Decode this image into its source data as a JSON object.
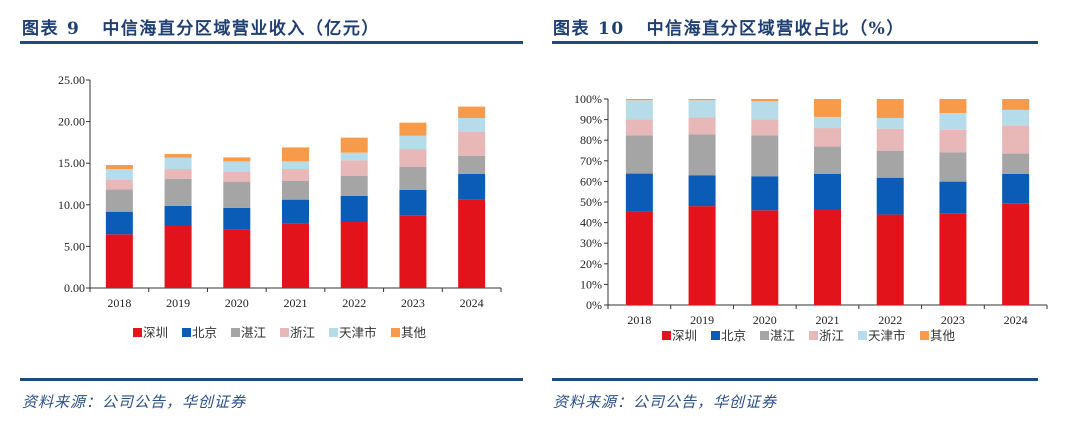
{
  "colors": {
    "title": "#1f3f73",
    "rule": "#1f4a7d",
    "series": [
      "#e3131b",
      "#0b5cb6",
      "#a5a5a5",
      "#e8b7b7",
      "#b5dce8",
      "#f79a4a"
    ]
  },
  "left": {
    "figure_label": "图表",
    "figure_number": "9",
    "title": "中信海直分区域营业收入（亿元）",
    "source": "资料来源：公司公告，华创证券"
  },
  "right": {
    "figure_label": "图表",
    "figure_number": "10",
    "title": "中信海直分区域营收占比（%）",
    "source": "资料来源：公司公告，华创证券"
  },
  "chart_data": [
    {
      "type": "bar",
      "stacked": true,
      "title": "中信海直分区域营业收入（亿元）",
      "xlabel": "",
      "ylabel": "",
      "categories": [
        "2018",
        "2019",
        "2020",
        "2021",
        "2022",
        "2023",
        "2024"
      ],
      "ylim": [
        0,
        25
      ],
      "yticks": [
        "0.00",
        "5.00",
        "10.00",
        "15.00",
        "20.00",
        "25.00"
      ],
      "grid": false,
      "legend": "bottom",
      "series": [
        {
          "name": "深圳",
          "values": [
            6.45,
            7.45,
            7.01,
            7.77,
            7.93,
            8.69,
            10.62
          ]
        },
        {
          "name": "北京",
          "values": [
            2.72,
            2.41,
            2.61,
            2.85,
            3.13,
            3.09,
            3.08
          ]
        },
        {
          "name": "湛江",
          "values": [
            2.69,
            3.28,
            3.16,
            2.24,
            2.4,
            2.8,
            2.2
          ]
        },
        {
          "name": "浙江",
          "values": [
            1.12,
            1.16,
            1.16,
            1.44,
            1.88,
            2.12,
            2.85
          ]
        },
        {
          "name": "天津市",
          "values": [
            1.32,
            1.36,
            1.28,
            0.92,
            0.93,
            1.6,
            1.68
          ]
        },
        {
          "name": "其他",
          "values": [
            0.48,
            0.44,
            0.48,
            1.68,
            1.8,
            1.57,
            1.37
          ]
        }
      ]
    },
    {
      "type": "bar",
      "stacked": true,
      "title": "中信海直分区域营收占比（%）",
      "xlabel": "",
      "ylabel": "",
      "categories": [
        "2018",
        "2019",
        "2020",
        "2021",
        "2022",
        "2023",
        "2024"
      ],
      "ylim": [
        0,
        100
      ],
      "yticks": [
        "0%",
        "10%",
        "20%",
        "30%",
        "40%",
        "50%",
        "60%",
        "70%",
        "80%",
        "90%",
        "100%"
      ],
      "grid": false,
      "legend": "bottom",
      "series": [
        {
          "name": "深圳",
          "values": [
            45.2,
            48.0,
            46.0,
            46.6,
            43.9,
            44.5,
            49.4
          ]
        },
        {
          "name": "北京",
          "values": [
            18.6,
            15.0,
            16.5,
            17.0,
            17.9,
            15.4,
            14.2
          ]
        },
        {
          "name": "湛江",
          "values": [
            18.6,
            19.9,
            19.9,
            13.3,
            13.1,
            14.2,
            9.9
          ]
        },
        {
          "name": "浙江",
          "values": [
            7.7,
            8.1,
            7.7,
            9.0,
            10.7,
            10.9,
            13.7
          ]
        },
        {
          "name": "天津市",
          "values": [
            9.3,
            8.4,
            8.8,
            5.4,
            5.2,
            8.2,
            7.5
          ]
        },
        {
          "name": "其他",
          "values": [
            0.6,
            0.6,
            1.1,
            8.7,
            9.2,
            6.8,
            5.3
          ]
        }
      ]
    }
  ]
}
